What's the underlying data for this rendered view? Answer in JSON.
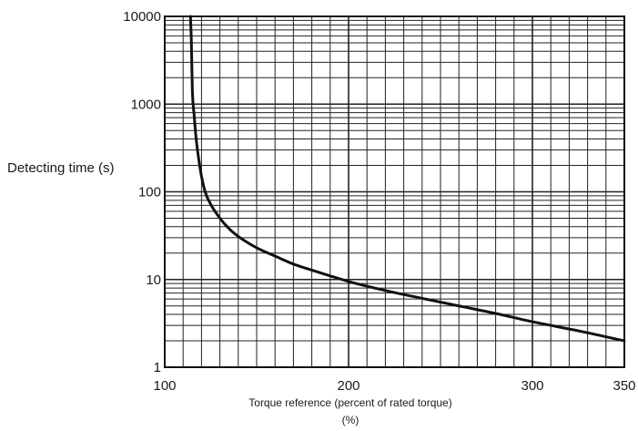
{
  "chart_data": {
    "type": "line",
    "title": "",
    "xlabel": "Torque reference (percent of rated torque)",
    "xlabel_unit": "(%)",
    "ylabel": "Detecting time (s)",
    "xlim": [
      100,
      350
    ],
    "ylim": [
      1,
      10000
    ],
    "y_scale": "log",
    "x_ticks": [
      "100",
      "200",
      "300",
      "350"
    ],
    "y_ticks": [
      "1",
      "10",
      "100",
      "1000",
      "10000"
    ],
    "grid": true,
    "legend": "none",
    "colors": {
      "curve": "#111111",
      "grid": "#222222",
      "text": "#1a1a1a"
    },
    "series": [
      {
        "x": [
          114,
          114.5,
          115,
          116,
          117,
          118,
          119,
          120,
          122,
          125,
          130,
          135,
          140,
          150,
          160,
          170,
          180,
          190,
          200,
          220,
          240,
          260,
          280,
          300,
          325,
          350
        ],
        "y": [
          10000,
          5000,
          1500,
          750,
          420,
          280,
          200,
          150,
          100,
          72,
          50,
          38,
          31,
          23,
          18.5,
          15,
          12.8,
          11,
          9.5,
          7.5,
          6.1,
          5,
          4.1,
          3.3,
          2.6,
          2
        ]
      }
    ]
  }
}
